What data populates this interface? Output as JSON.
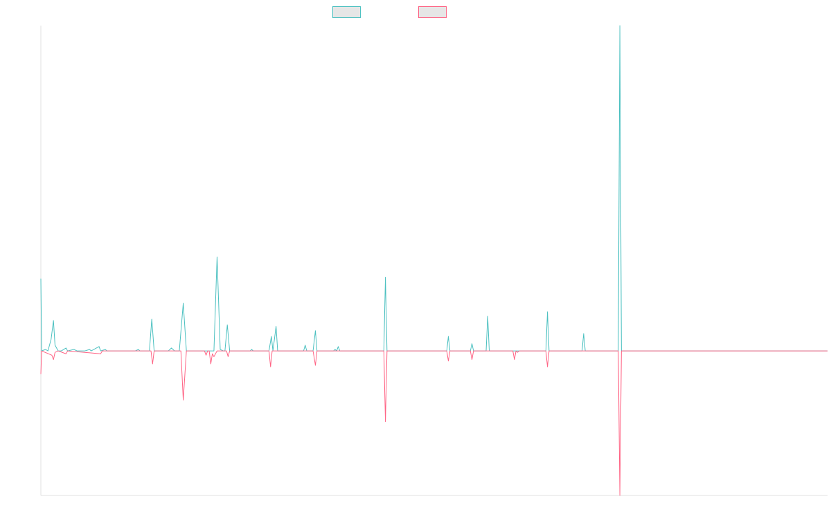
{
  "chart_data": {
    "type": "line",
    "title": "",
    "xlabel": "",
    "ylabel": "",
    "grid": false,
    "legend_position": "top-center",
    "ylim": [
      -100,
      225
    ],
    "series": [
      {
        "name": "",
        "color": "#4bc0c0",
        "legend_fill": "#e6e6e6",
        "points": [
          [
            0,
            50
          ],
          [
            0.5,
            0
          ],
          [
            3,
            1
          ],
          [
            4.5,
            0
          ],
          [
            6.5,
            8
          ],
          [
            8,
            21
          ],
          [
            9,
            4
          ],
          [
            11,
            0
          ],
          [
            13,
            0
          ],
          [
            16,
            2
          ],
          [
            17,
            0
          ],
          [
            21,
            1
          ],
          [
            23,
            0
          ],
          [
            28,
            0
          ],
          [
            31,
            1
          ],
          [
            32,
            0
          ],
          [
            37,
            3
          ],
          [
            38,
            0
          ],
          [
            41,
            1
          ],
          [
            42,
            0
          ],
          [
            50,
            0
          ],
          [
            60,
            0
          ],
          [
            62,
            1
          ],
          [
            63,
            0
          ],
          [
            69,
            0
          ],
          [
            70.5,
            22
          ],
          [
            72,
            0
          ],
          [
            81,
            0
          ],
          [
            83,
            2
          ],
          [
            85,
            0
          ],
          [
            88,
            0
          ],
          [
            90.5,
            33
          ],
          [
            92.5,
            0
          ],
          [
            102,
            0
          ],
          [
            103,
            0
          ],
          [
            110,
            0
          ],
          [
            112,
            65
          ],
          [
            114,
            1
          ],
          [
            116,
            0
          ],
          [
            117,
            0
          ],
          [
            118.5,
            18
          ],
          [
            120,
            0
          ],
          [
            133,
            0
          ],
          [
            134,
            1
          ],
          [
            135,
            0
          ],
          [
            145,
            0
          ],
          [
            146.5,
            10
          ],
          [
            147.5,
            0
          ],
          [
            149.5,
            17
          ],
          [
            150.5,
            0
          ],
          [
            167,
            0
          ],
          [
            168,
            4
          ],
          [
            169,
            0
          ],
          [
            173,
            0
          ],
          [
            174.5,
            14
          ],
          [
            175.5,
            0
          ],
          [
            186,
            0
          ],
          [
            187,
            1
          ],
          [
            188,
            0
          ],
          [
            189,
            3
          ],
          [
            190,
            0
          ],
          [
            218,
            0
          ],
          [
            219,
            51
          ],
          [
            220,
            0
          ],
          [
            258,
            0
          ],
          [
            259,
            10
          ],
          [
            260,
            0
          ],
          [
            273,
            0
          ],
          [
            274,
            5
          ],
          [
            275,
            0
          ],
          [
            283,
            0
          ],
          [
            284,
            24
          ],
          [
            285,
            0
          ],
          [
            299,
            0
          ],
          [
            300,
            0
          ],
          [
            321,
            0
          ],
          [
            322,
            27
          ],
          [
            323,
            0
          ],
          [
            344,
            0
          ],
          [
            345,
            12
          ],
          [
            346,
            0
          ],
          [
            367,
            0
          ],
          [
            368,
            225
          ],
          [
            369,
            0
          ],
          [
            500,
            0
          ]
        ]
      },
      {
        "name": "",
        "color": "#ff6384",
        "legend_fill": "#e6e6e6",
        "points": [
          [
            0,
            -16
          ],
          [
            0.5,
            0
          ],
          [
            7,
            -3
          ],
          [
            8,
            -6
          ],
          [
            9,
            -1
          ],
          [
            11,
            0
          ],
          [
            16,
            -2
          ],
          [
            17,
            0
          ],
          [
            38,
            -2
          ],
          [
            39,
            0
          ],
          [
            70,
            0
          ],
          [
            71,
            -9
          ],
          [
            72,
            0
          ],
          [
            89,
            0
          ],
          [
            90.5,
            -34
          ],
          [
            92.5,
            0
          ],
          [
            104,
            0
          ],
          [
            105,
            -3
          ],
          [
            106,
            0
          ],
          [
            107,
            0
          ],
          [
            108,
            -9
          ],
          [
            109,
            -2
          ],
          [
            110,
            -4
          ],
          [
            111,
            -2
          ],
          [
            112,
            0
          ],
          [
            118,
            0
          ],
          [
            119,
            -4
          ],
          [
            120,
            0
          ],
          [
            145,
            0
          ],
          [
            146,
            -11
          ],
          [
            147,
            0
          ],
          [
            173,
            0
          ],
          [
            174.5,
            -10
          ],
          [
            175.5,
            0
          ],
          [
            218,
            0
          ],
          [
            219,
            -49
          ],
          [
            220,
            0
          ],
          [
            258,
            0
          ],
          [
            259,
            -7
          ],
          [
            260,
            0
          ],
          [
            273,
            0
          ],
          [
            274,
            -6
          ],
          [
            275,
            0
          ],
          [
            300,
            0
          ],
          [
            301,
            -6
          ],
          [
            302,
            0
          ],
          [
            303,
            -1
          ],
          [
            304,
            0
          ],
          [
            321,
            0
          ],
          [
            322,
            -11
          ],
          [
            323,
            0
          ],
          [
            367,
            0
          ],
          [
            368,
            -100
          ],
          [
            369,
            0
          ],
          [
            500,
            0
          ]
        ]
      }
    ]
  }
}
